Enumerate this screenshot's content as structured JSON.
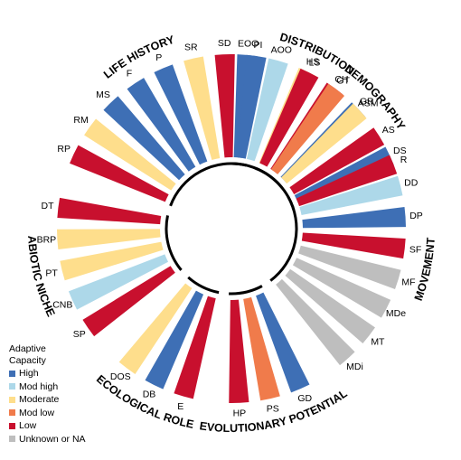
{
  "chart_data": {
    "type": "radial bar",
    "legend": {
      "title_line1": "Adaptive",
      "title_line2": "Capacity",
      "placement": "bottom-left",
      "items": [
        {
          "key": "high",
          "label": "High",
          "color": "#3E6FB5"
        },
        {
          "key": "modhigh",
          "label": "Mod high",
          "color": "#ADD8E9"
        },
        {
          "key": "moderate",
          "label": "Moderate",
          "color": "#FEDE8C"
        },
        {
          "key": "modlow",
          "label": "Mod low",
          "color": "#F07B4B"
        },
        {
          "key": "low",
          "label": "Low",
          "color": "#C8102E"
        },
        {
          "key": "unknown",
          "label": "Unknown or NA",
          "color": "#BEBEBE"
        }
      ]
    },
    "groups": [
      {
        "label": "DISTRIBUTION",
        "bars": [
          {
            "label": "EOO",
            "category": "high"
          },
          {
            "label": "AOO",
            "category": "modhigh"
          },
          {
            "label": "HS",
            "category": "moderate"
          },
          {
            "label": "CH",
            "category": "low"
          },
          {
            "label": "GR",
            "category": "high"
          }
        ]
      },
      {
        "label": "MOVEMENT",
        "bars": [
          {
            "label": "DS",
            "category": "high"
          },
          {
            "label": "DD",
            "category": "modhigh"
          },
          {
            "label": "DP",
            "category": "high"
          },
          {
            "label": "SF",
            "category": "low"
          },
          {
            "label": "MF",
            "category": "unknown"
          },
          {
            "label": "MDe",
            "category": "unknown"
          },
          {
            "label": "MT",
            "category": "unknown"
          },
          {
            "label": "MDi",
            "category": "unknown"
          }
        ]
      },
      {
        "label": "EVOLUTIONARY POTENTIAL",
        "bars": [
          {
            "label": "GD",
            "category": "high"
          },
          {
            "label": "PS",
            "category": "modlow"
          },
          {
            "label": "HP",
            "category": "low"
          }
        ]
      },
      {
        "label": "ECOLOGICAL ROLE",
        "bars": [
          {
            "label": "E",
            "category": "low"
          },
          {
            "label": "DB",
            "category": "high"
          },
          {
            "label": "DOS",
            "category": "moderate"
          }
        ]
      },
      {
        "label": "ABIOTIC NICHE",
        "bars": [
          {
            "label": "SP",
            "category": "low"
          },
          {
            "label": "CNB",
            "category": "modhigh"
          },
          {
            "label": "PT",
            "category": "moderate"
          },
          {
            "label": "BRP",
            "category": "moderate"
          },
          {
            "label": "DT",
            "category": "low"
          }
        ]
      },
      {
        "label": "LIFE HISTORY",
        "bars": [
          {
            "label": "RP",
            "category": "low"
          },
          {
            "label": "RM",
            "category": "moderate"
          },
          {
            "label": "MS",
            "category": "high"
          },
          {
            "label": "F",
            "category": "high"
          },
          {
            "label": "P",
            "category": "high"
          },
          {
            "label": "SR",
            "category": "moderate"
          },
          {
            "label": "SD",
            "category": "low"
          },
          {
            "label": "PI",
            "category": "high"
          }
        ]
      },
      {
        "label": "DEMOGRAPHY",
        "bars": [
          {
            "label": "LS",
            "category": "low"
          },
          {
            "label": "GT",
            "category": "modlow"
          },
          {
            "label": "ASM",
            "category": "moderate"
          },
          {
            "label": "AS",
            "category": "low"
          },
          {
            "label": "R",
            "category": "low"
          }
        ]
      }
    ]
  }
}
